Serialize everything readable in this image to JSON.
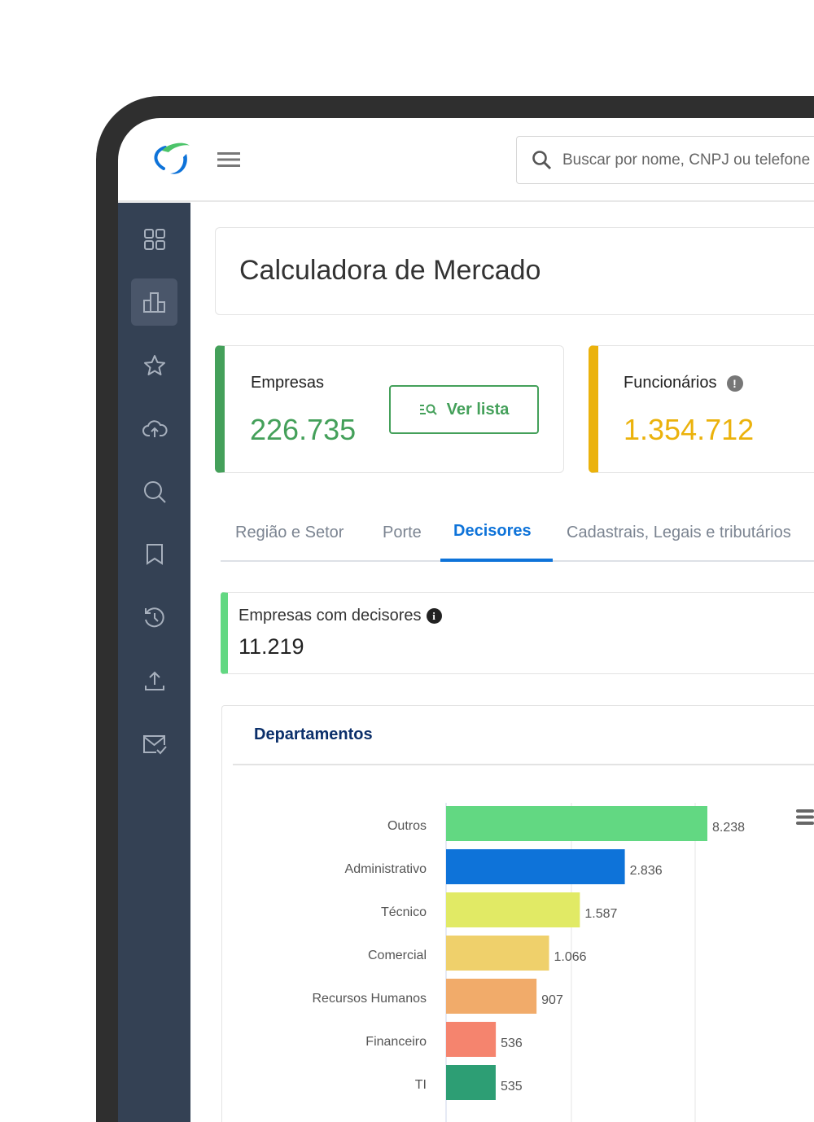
{
  "header": {
    "search_placeholder": "Buscar por nome, CNPJ ou telefone"
  },
  "sidebar": {
    "items": [
      {
        "icon": "grid-icon",
        "active": false
      },
      {
        "icon": "bar-chart-icon",
        "active": true
      },
      {
        "icon": "star-icon",
        "active": false
      },
      {
        "icon": "cloud-upload-icon",
        "active": false
      },
      {
        "icon": "search-icon",
        "active": false
      },
      {
        "icon": "bookmark-icon",
        "active": false
      },
      {
        "icon": "history-icon",
        "active": false
      },
      {
        "icon": "upload-icon",
        "active": false
      },
      {
        "icon": "mail-check-icon",
        "active": false
      }
    ]
  },
  "page_title": "Calculadora de Mercado",
  "stats": {
    "empresas": {
      "label": "Empresas",
      "value": "226.735",
      "button": "Ver lista",
      "color": "#44a05a"
    },
    "funcionarios": {
      "label": "Funcionários",
      "value": "1.354.712",
      "color": "#ebb20c"
    }
  },
  "tabs": [
    {
      "label": "Região e Setor"
    },
    {
      "label": "Porte"
    },
    {
      "label": "Decisores",
      "active": true
    },
    {
      "label": "Cadastrais, Legais e tributários"
    }
  ],
  "decisores": {
    "label": "Empresas com decisores",
    "value": "11.219"
  },
  "chart_data": {
    "type": "bar",
    "orientation": "horizontal",
    "title": "Departamentos",
    "xscale": "log",
    "categories": [
      "Outros",
      "Administrativo",
      "Técnico",
      "Comercial",
      "Recursos Humanos",
      "Financeiro",
      "TI"
    ],
    "values": [
      8238,
      2836,
      1587,
      1066,
      907,
      536,
      535
    ],
    "value_labels": [
      "8.238",
      "2.836",
      "1.587",
      "1.066",
      "907",
      "536",
      "535"
    ],
    "colors": [
      "#62d882",
      "#0e73d9",
      "#e1ea65",
      "#efd06b",
      "#f1ab6a",
      "#f5846e",
      "#2d9e74"
    ],
    "grid": true
  }
}
